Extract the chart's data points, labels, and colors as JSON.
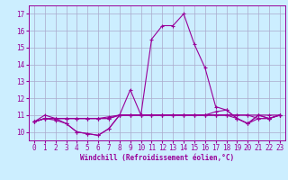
{
  "xlabel": "Windchill (Refroidissement éolien,°C)",
  "hours": [
    0,
    1,
    2,
    3,
    4,
    5,
    6,
    7,
    8,
    9,
    10,
    11,
    12,
    13,
    14,
    15,
    16,
    17,
    18,
    19,
    20,
    21,
    22,
    23
  ],
  "series": [
    [
      10.6,
      11.0,
      10.8,
      10.5,
      10.0,
      9.9,
      9.8,
      10.2,
      11.0,
      12.5,
      11.0,
      15.5,
      16.3,
      16.3,
      17.0,
      15.2,
      13.8,
      11.5,
      11.3,
      10.8,
      10.5,
      11.0,
      10.8,
      11.0
    ],
    [
      10.6,
      10.8,
      10.8,
      10.8,
      10.8,
      10.8,
      10.8,
      10.8,
      11.0,
      11.0,
      11.0,
      11.0,
      11.0,
      11.0,
      11.0,
      11.0,
      11.0,
      11.0,
      11.0,
      11.0,
      11.0,
      11.0,
      11.0,
      11.0
    ],
    [
      10.6,
      10.8,
      10.8,
      10.8,
      10.8,
      10.8,
      10.8,
      10.9,
      11.0,
      11.0,
      11.0,
      11.0,
      11.0,
      11.0,
      11.0,
      11.0,
      11.0,
      11.0,
      11.0,
      11.0,
      11.0,
      10.8,
      10.8,
      11.0
    ],
    [
      10.6,
      10.8,
      10.7,
      10.5,
      10.0,
      9.9,
      9.8,
      10.2,
      11.0,
      11.0,
      11.0,
      11.0,
      11.0,
      11.0,
      11.0,
      11.0,
      11.0,
      11.2,
      11.3,
      10.8,
      10.5,
      11.0,
      10.8,
      11.0
    ],
    [
      10.6,
      10.8,
      10.8,
      10.8,
      10.8,
      10.8,
      10.8,
      10.8,
      11.0,
      11.0,
      11.0,
      11.0,
      11.0,
      11.0,
      11.0,
      11.0,
      11.0,
      11.0,
      11.0,
      10.8,
      10.5,
      10.8,
      10.8,
      11.0
    ]
  ],
  "line_color": "#990099",
  "bg_color": "#cceeff",
  "grid_color": "#aaaacc",
  "ylim": [
    9.5,
    17.5
  ],
  "yticks": [
    10,
    11,
    12,
    13,
    14,
    15,
    16,
    17
  ],
  "xlim": [
    -0.5,
    23.5
  ],
  "xticks": [
    0,
    1,
    2,
    3,
    4,
    5,
    6,
    7,
    8,
    9,
    10,
    11,
    12,
    13,
    14,
    15,
    16,
    17,
    18,
    19,
    20,
    21,
    22,
    23
  ],
  "tick_fontsize": 5.5,
  "xlabel_fontsize": 5.5
}
